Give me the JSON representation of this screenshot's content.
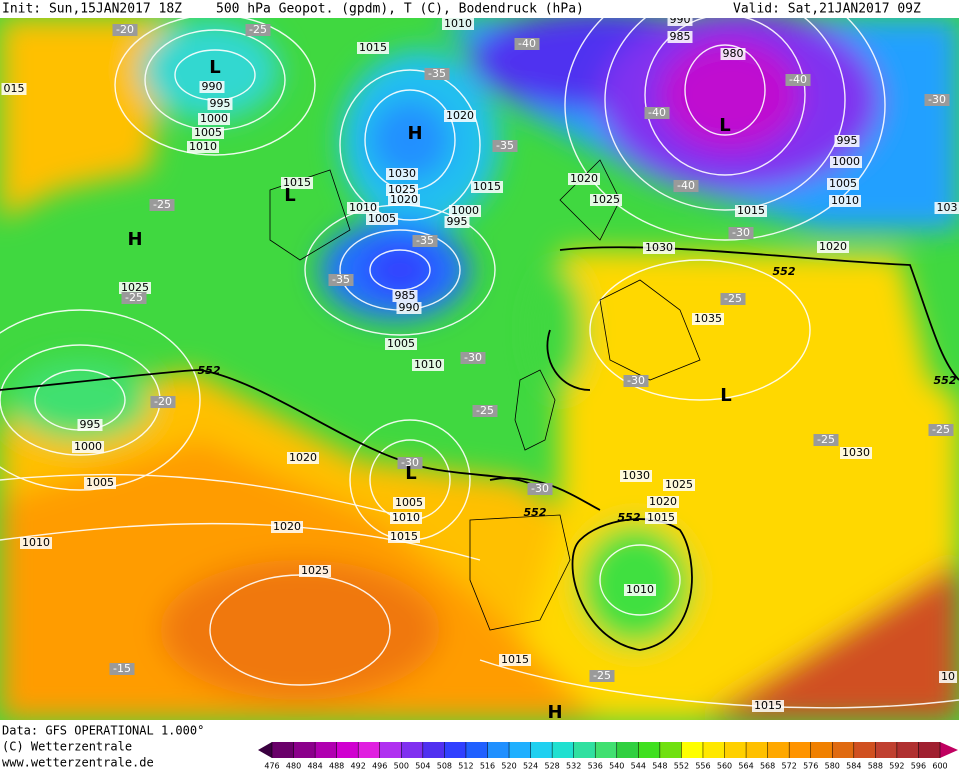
{
  "header": {
    "init": "Init: Sun,15JAN2017 18Z",
    "title": "500 hPa Geopot. (gpdm), T (C), Bodendruck (hPa)",
    "valid": "Valid: Sat,21JAN2017 09Z"
  },
  "footer": {
    "data": "Data: GFS OPERATIONAL 1.000°",
    "copyright": "(C) Wetterzentrale",
    "url": "www.wetterzentrale.de"
  },
  "colorbar": {
    "ticks": [
      476,
      480,
      484,
      488,
      492,
      496,
      500,
      504,
      508,
      512,
      516,
      520,
      524,
      528,
      532,
      536,
      540,
      544,
      548,
      552,
      556,
      560,
      564,
      568,
      572,
      576,
      580,
      584,
      588,
      592,
      596,
      600
    ],
    "colors": [
      "#3a0040",
      "#6a006a",
      "#8b008b",
      "#b000b0",
      "#d000d0",
      "#e020e0",
      "#b030f0",
      "#8030f0",
      "#5030f0",
      "#3040ff",
      "#2060ff",
      "#2090ff",
      "#20b0ff",
      "#20d0f0",
      "#20e0d0",
      "#30e0a0",
      "#40e070",
      "#30d040",
      "#40e020",
      "#70e010",
      "#ffff00",
      "#ffe800",
      "#ffd000",
      "#ffc000",
      "#ffa800",
      "#ff9400",
      "#f08000",
      "#e06a10",
      "#d05020",
      "#c04030",
      "#b03030",
      "#a02030",
      "#c00060"
    ]
  },
  "map": {
    "labels": [
      "1010",
      "1015",
      "-25",
      "-20",
      "L",
      "990",
      "995",
      "1000",
      "1005",
      "1010",
      "015",
      "-40",
      "-35",
      "H",
      "1020",
      "-35",
      "990",
      "985",
      "980",
      "-40",
      "-40",
      "L",
      "995",
      "1000",
      "1005",
      "1010",
      "-30",
      "1030",
      "1025",
      "1020",
      "1015",
      "L",
      "1010",
      "1005",
      "1000",
      "995",
      "1015",
      "1020",
      "1025",
      "-40",
      "1015",
      "-30",
      "1020",
      "103",
      "-25",
      "H",
      "-35",
      "-35",
      "985",
      "990",
      "1025",
      "-25",
      "1030",
      "552",
      "-25",
      "1035",
      "1005",
      "1010",
      "-30",
      "552",
      "-20",
      "995",
      "1000",
      "-25",
      "-30",
      "L",
      "552",
      "-25",
      "-25",
      "1030",
      "1020",
      "-30",
      "L",
      "1005",
      "1030",
      "1025",
      "1005",
      "1010",
      "1020",
      "-30",
      "552",
      "552",
      "1015",
      "1020",
      "1010",
      "1015",
      "1025",
      "1010",
      "1015",
      "-25",
      "-15",
      "H",
      "1015",
      "10"
    ]
  }
}
